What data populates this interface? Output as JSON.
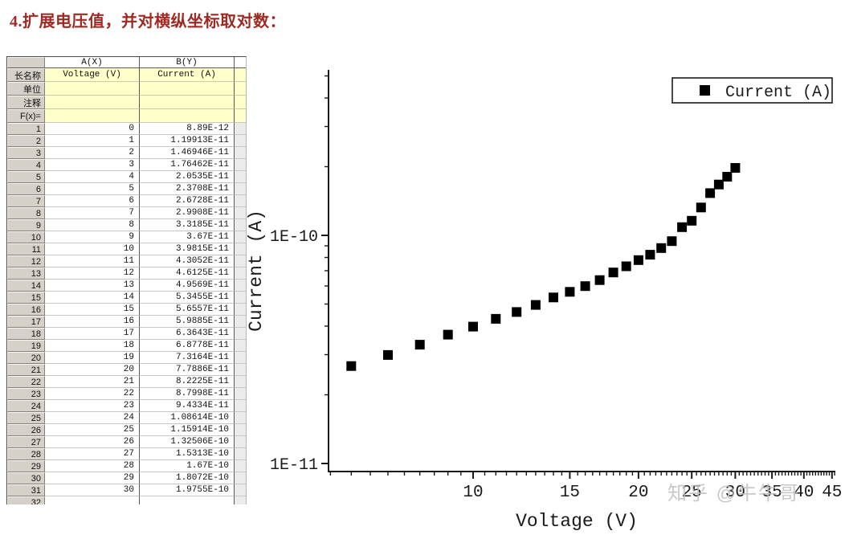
{
  "title": "4.扩展电压值，并对横纵坐标取对数：",
  "watermark": "知乎 @牛牛哥",
  "table": {
    "column_names": [
      "A(X)",
      "B(Y)"
    ],
    "row_labels": {
      "long_name": "长名称",
      "units": "单位",
      "comments": "注释",
      "fx": "F(x)="
    },
    "long_names": [
      "Voltage (V)",
      "Current (A)"
    ],
    "units": [
      "",
      ""
    ],
    "comments": [
      "",
      ""
    ],
    "fx": [
      "",
      ""
    ],
    "rows": [
      {
        "n": "1",
        "voltage": "0",
        "current": "8.89E-12"
      },
      {
        "n": "2",
        "voltage": "1",
        "current": "1.19913E-11"
      },
      {
        "n": "3",
        "voltage": "2",
        "current": "1.46946E-11"
      },
      {
        "n": "4",
        "voltage": "3",
        "current": "1.76462E-11"
      },
      {
        "n": "5",
        "voltage": "4",
        "current": "2.0535E-11"
      },
      {
        "n": "6",
        "voltage": "5",
        "current": "2.3708E-11"
      },
      {
        "n": "7",
        "voltage": "6",
        "current": "2.6728E-11"
      },
      {
        "n": "8",
        "voltage": "7",
        "current": "2.9908E-11"
      },
      {
        "n": "9",
        "voltage": "8",
        "current": "3.3185E-11"
      },
      {
        "n": "10",
        "voltage": "9",
        "current": "3.67E-11"
      },
      {
        "n": "11",
        "voltage": "10",
        "current": "3.9815E-11"
      },
      {
        "n": "12",
        "voltage": "11",
        "current": "4.3052E-11"
      },
      {
        "n": "13",
        "voltage": "12",
        "current": "4.6125E-11"
      },
      {
        "n": "14",
        "voltage": "13",
        "current": "4.9569E-11"
      },
      {
        "n": "15",
        "voltage": "14",
        "current": "5.3455E-11"
      },
      {
        "n": "16",
        "voltage": "15",
        "current": "5.6557E-11"
      },
      {
        "n": "17",
        "voltage": "16",
        "current": "5.9885E-11"
      },
      {
        "n": "18",
        "voltage": "17",
        "current": "6.3643E-11"
      },
      {
        "n": "19",
        "voltage": "18",
        "current": "6.8778E-11"
      },
      {
        "n": "20",
        "voltage": "19",
        "current": "7.3164E-11"
      },
      {
        "n": "21",
        "voltage": "20",
        "current": "7.7886E-11"
      },
      {
        "n": "22",
        "voltage": "21",
        "current": "8.2225E-11"
      },
      {
        "n": "23",
        "voltage": "22",
        "current": "8.7998E-11"
      },
      {
        "n": "24",
        "voltage": "23",
        "current": "9.4334E-11"
      },
      {
        "n": "25",
        "voltage": "24",
        "current": "1.08614E-10"
      },
      {
        "n": "26",
        "voltage": "25",
        "current": "1.15914E-10"
      },
      {
        "n": "27",
        "voltage": "26",
        "current": "1.32506E-10"
      },
      {
        "n": "28",
        "voltage": "27",
        "current": "1.5313E-10"
      },
      {
        "n": "29",
        "voltage": "28",
        "current": "1.67E-10"
      },
      {
        "n": "30",
        "voltage": "29",
        "current": "1.8072E-10"
      },
      {
        "n": "31",
        "voltage": "30",
        "current": "1.9755E-10"
      },
      {
        "n": "32",
        "voltage": "",
        "current": ""
      }
    ]
  },
  "chart_data": {
    "type": "scatter",
    "title": "",
    "xlabel": "Voltage (V)",
    "ylabel": "Current (A)",
    "xscale": "log",
    "yscale": "log",
    "xlim": [
      5.47,
      45.6
    ],
    "ylim": [
      9.2e-12,
      5.3e-10
    ],
    "xticks_major": [
      10,
      15,
      20,
      25,
      30,
      35,
      40,
      45
    ],
    "yticks_major": [
      {
        "value": 1e-10,
        "label": "1E-10"
      },
      {
        "value": 1e-11,
        "label": "1E-11"
      }
    ],
    "legend": {
      "label": "Current (A)",
      "marker": "filled-square",
      "color": "#000000",
      "position": "top-right"
    },
    "series": [
      {
        "name": "Current (A)",
        "x": [
          0,
          1,
          2,
          3,
          4,
          5,
          6,
          7,
          8,
          9,
          10,
          11,
          12,
          13,
          14,
          15,
          16,
          17,
          18,
          19,
          20,
          21,
          22,
          23,
          24,
          25,
          26,
          27,
          28,
          29,
          30
        ],
        "y": [
          8.89e-12,
          1.19913e-11,
          1.46946e-11,
          1.76462e-11,
          2.0535e-11,
          2.3708e-11,
          2.6728e-11,
          2.9908e-11,
          3.3185e-11,
          3.67e-11,
          3.9815e-11,
          4.3052e-11,
          4.6125e-11,
          4.9569e-11,
          5.3455e-11,
          5.6557e-11,
          5.9885e-11,
          6.3643e-11,
          6.8778e-11,
          7.3164e-11,
          7.7886e-11,
          8.2225e-11,
          8.7998e-11,
          9.4334e-11,
          1.08614e-10,
          1.15914e-10,
          1.32506e-10,
          1.5313e-10,
          1.67e-10,
          1.8072e-10,
          1.9755e-10
        ]
      }
    ]
  }
}
